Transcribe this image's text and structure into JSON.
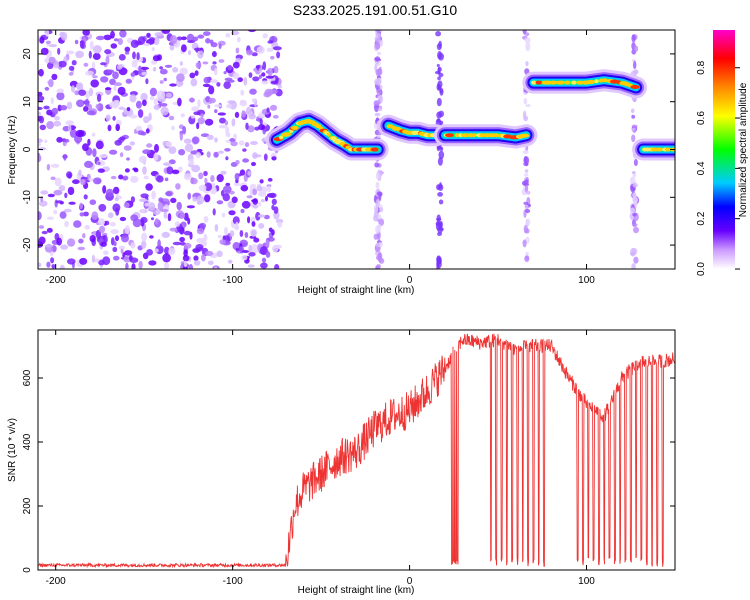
{
  "title": "S233.2025.191.00.51.G10",
  "chart_data": [
    {
      "type": "heatmap",
      "xlabel": "Height of straight line (km)",
      "ylabel": "Frequency (Hz)",
      "xlim": [
        -210,
        150
      ],
      "ylim": [
        -25,
        25
      ],
      "x_ticks": [
        -200,
        -100,
        0,
        100
      ],
      "y_ticks": [
        -20,
        -10,
        0,
        10,
        20
      ],
      "colorbar": {
        "label": "Normalized spectral amplitude",
        "range": [
          0,
          0.95
        ],
        "ticks": [
          0.0,
          0.2,
          0.4,
          0.6,
          0.8
        ],
        "colors": [
          "#ffffff",
          "#cc99ff",
          "#6600ff",
          "#0000ff",
          "#00ccff",
          "#00ff00",
          "#ffff00",
          "#ff8800",
          "#ff0000",
          "#ff00cc"
        ]
      },
      "noise_region": {
        "x": [
          -210,
          -73
        ],
        "y": [
          -25,
          25
        ]
      },
      "trace_segments": [
        {
          "x": [
            -75,
            -68,
            -62,
            -57,
            -52,
            -47,
            -42,
            -37,
            -33,
            -28,
            -23,
            -18
          ],
          "y": [
            2,
            3.5,
            5.5,
            6,
            5,
            3.5,
            2,
            1,
            0,
            0,
            0,
            0
          ]
        },
        {
          "x": [
            -12,
            -5,
            0,
            5,
            10,
            15
          ],
          "y": [
            5,
            4,
            3.5,
            3.5,
            3,
            3
          ]
        },
        {
          "x": [
            20,
            30,
            40,
            50,
            60,
            66
          ],
          "y": [
            3,
            3,
            3,
            3,
            2.5,
            3
          ]
        },
        {
          "x": [
            70,
            80,
            90,
            100,
            110,
            120,
            128
          ],
          "y": [
            14,
            14,
            14,
            14,
            14.5,
            14,
            13
          ]
        },
        {
          "x": [
            132,
            140,
            150
          ],
          "y": [
            0,
            0,
            0
          ]
        }
      ],
      "vertical_streaks": [
        -18,
        -17,
        17,
        66,
        127
      ]
    },
    {
      "type": "line",
      "xlabel": "Height of straight line (km)",
      "ylabel": "SNR (10 * v/v)",
      "xlim": [
        -210,
        150
      ],
      "ylim": [
        0,
        750
      ],
      "x_ticks": [
        -200,
        -100,
        0,
        100
      ],
      "y_ticks": [
        0,
        200,
        400,
        600
      ],
      "color": "#ee3333",
      "envelope": {
        "x": [
          -210,
          -70,
          -65,
          -60,
          -50,
          -40,
          -30,
          -20,
          -10,
          0,
          10,
          20,
          25,
          30,
          40,
          50,
          60,
          70,
          80,
          90,
          100,
          110,
          120,
          130,
          140,
          150
        ],
        "y": [
          15,
          15,
          200,
          250,
          300,
          350,
          370,
          440,
          480,
          500,
          560,
          630,
          680,
          720,
          710,
          720,
          690,
          700,
          700,
          600,
          520,
          480,
          600,
          650,
          650,
          660
        ]
      },
      "dropouts": [
        24,
        25,
        26,
        27,
        46,
        49,
        52,
        55,
        58,
        61,
        64,
        67,
        70,
        73,
        76,
        95,
        98,
        101,
        104,
        107,
        110,
        113,
        116,
        119,
        122,
        125,
        128,
        131,
        134,
        137,
        140,
        143
      ]
    }
  ]
}
